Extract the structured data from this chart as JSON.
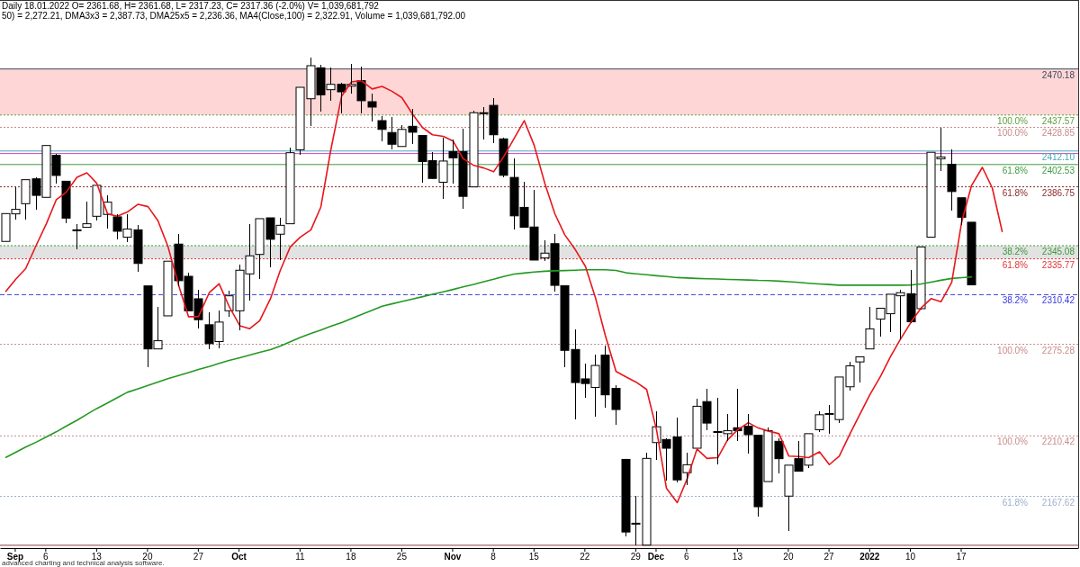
{
  "chart_data": {
    "type": "candlestick",
    "title": "Daily 18.01.2022 O= 2361.68, H= 2361.68, L= 2317.23, C= 2317.36 (-2.0%) V= 1,039,681,792",
    "subtitle": "50) = 2,272.21, DMA3x3 = 2,387.73, DMA25x5 = 2,236.36, MA4(Close,100) = 2,322.91, Volume = 1,039,681,792.00",
    "categories": [
      null,
      "Sep",
      null,
      null,
      "6",
      null,
      null,
      null,
      null,
      "13",
      null,
      null,
      null,
      null,
      "20",
      null,
      null,
      null,
      null,
      "27",
      null,
      null,
      null,
      "Oct",
      null,
      null,
      null,
      null,
      null,
      "11",
      null,
      null,
      null,
      null,
      "18",
      null,
      null,
      null,
      null,
      "25",
      null,
      null,
      null,
      null,
      "Nov",
      null,
      null,
      null,
      "8",
      null,
      null,
      null,
      "15",
      null,
      null,
      null,
      null,
      "22",
      null,
      null,
      null,
      null,
      "29",
      null,
      "Dec",
      null,
      null,
      "6",
      null,
      null,
      null,
      null,
      "13",
      null,
      null,
      null,
      null,
      "20",
      null,
      null,
      null,
      "27",
      null,
      null,
      null,
      "2022",
      null,
      null,
      null,
      "10",
      null,
      null,
      null,
      null,
      "17",
      null,
      null,
      null,
      null,
      null,
      null,
      null,
      null,
      null,
      null,
      null
    ],
    "ohlc": [
      [
        2348.1,
        2367.8,
        2348.1,
        2367.8
      ],
      [
        2367.6,
        2386.7,
        2363.4,
        2370.8
      ],
      [
        2374.8,
        2391.8,
        2363.4,
        2391.8
      ],
      [
        2392.4,
        2393.5,
        2370.6,
        2380.7
      ],
      [
        2379.3,
        2416.0,
        2379.3,
        2416.0
      ],
      [
        2409.0,
        2410.0,
        2388.8,
        2394.8
      ],
      [
        2390.7,
        2390.7,
        2361.2,
        2364.6
      ],
      [
        2356.3,
        2360.6,
        2342.4,
        2356.3
      ],
      [
        2358.1,
        2376.5,
        2358.1,
        2360.6
      ],
      [
        2365.9,
        2387.8,
        2363.1,
        2387.8
      ],
      [
        2367.2,
        2380.8,
        2356.9,
        2375.9
      ],
      [
        2365.5,
        2367.2,
        2349.4,
        2355.3
      ],
      [
        2351.1,
        2367.2,
        2347.5,
        2356.9
      ],
      [
        2356.3,
        2359.5,
        2326.6,
        2332.5
      ],
      [
        2316.6,
        2316.6,
        2259.3,
        2272.0
      ],
      [
        2272.0,
        2301.7,
        2272.0,
        2277.8
      ],
      [
        2295.4,
        2334.1,
        2295.4,
        2334.1
      ],
      [
        2346.2,
        2353.2,
        2316.2,
        2320.3
      ],
      [
        2323.4,
        2326.0,
        2299.0,
        2299.0
      ],
      [
        2307.5,
        2313.9,
        2286.3,
        2292.7
      ],
      [
        2289.1,
        2298.0,
        2271.5,
        2275.7
      ],
      [
        2277.2,
        2299.0,
        2272.5,
        2291.0
      ],
      [
        2299.0,
        2313.2,
        2294.8,
        2309.6
      ],
      [
        2299.0,
        2331.9,
        2285.2,
        2327.7
      ],
      [
        2325.1,
        2360.6,
        2306.5,
        2337.9
      ],
      [
        2338.9,
        2364.2,
        2321.5,
        2364.2
      ],
      [
        2364.8,
        2364.8,
        2329.5,
        2349.6
      ],
      [
        2353.2,
        2364.8,
        2335.1,
        2359.5
      ],
      [
        2360.6,
        2414.7,
        2360.6,
        2410.9
      ],
      [
        2413.0,
        2457.2,
        2409.4,
        2457.2
      ],
      [
        2449.1,
        2478.4,
        2430.0,
        2472.5
      ],
      [
        2471.0,
        2473.1,
        2440.2,
        2451.9
      ],
      [
        2455.5,
        2471.0,
        2447.7,
        2459.3
      ],
      [
        2459.3,
        2460.4,
        2438.5,
        2454.0
      ],
      [
        2458.0,
        2473.7,
        2453.0,
        2459.3
      ],
      [
        2461.9,
        2472.1,
        2438.5,
        2447.7
      ],
      [
        2447.0,
        2453.0,
        2432.8,
        2443.2
      ],
      [
        2433.6,
        2437.0,
        2419.1,
        2427.4
      ],
      [
        2425.2,
        2436.3,
        2413.1,
        2416.9
      ],
      [
        2415.3,
        2430.3,
        2415.3,
        2427.4
      ],
      [
        2429.6,
        2442.1,
        2417.3,
        2425.4
      ],
      [
        2423.1,
        2423.6,
        2389.4,
        2404.6
      ],
      [
        2405.3,
        2411.3,
        2392.3,
        2392.7
      ],
      [
        2390.0,
        2421.3,
        2378.4,
        2405.0
      ],
      [
        2411.7,
        2420.2,
        2389.0,
        2407.3
      ],
      [
        2411.7,
        2428.1,
        2371.5,
        2380.0
      ],
      [
        2386.7,
        2440.8,
        2386.7,
        2439.2
      ],
      [
        2439.2,
        2443.0,
        2420.2,
        2439.2
      ],
      [
        2444.4,
        2449.3,
        2417.5,
        2423.6
      ],
      [
        2420.7,
        2421.3,
        2393.4,
        2394.9
      ],
      [
        2393.4,
        2406.8,
        2356.5,
        2366.2
      ],
      [
        2372.2,
        2390.0,
        2358.1,
        2358.1
      ],
      [
        2358.3,
        2384.5,
        2334.9,
        2334.9
      ],
      [
        2336.4,
        2349.2,
        2334.2,
        2339.8
      ],
      [
        2346.5,
        2353.6,
        2312.5,
        2317.0
      ],
      [
        2316.8,
        2316.8,
        2259.3,
        2271.0
      ],
      [
        2271.6,
        2285.7,
        2221.8,
        2248.2
      ],
      [
        2250.8,
        2261.9,
        2237.4,
        2247.5
      ],
      [
        2244.7,
        2268.1,
        2224.0,
        2260.3
      ],
      [
        2267.6,
        2274.4,
        2230.3,
        2239.5
      ],
      [
        2244.1,
        2246.3,
        2218.6,
        2229.1
      ],
      [
        2193.8,
        2193.8,
        2139.1,
        2142.4
      ],
      [
        2148.6,
        2168.2,
        2133.1,
        2148.6
      ],
      [
        2133.1,
        2198.5,
        2133.1,
        2194.5
      ],
      [
        2205.7,
        2228.0,
        2193.4,
        2216.9
      ],
      [
        2207.9,
        2208.5,
        2178.9,
        2201.7
      ],
      [
        2209.7,
        2223.1,
        2177.7,
        2179.3
      ],
      [
        2184.4,
        2198.5,
        2175.5,
        2190.0
      ],
      [
        2201.7,
        2237.0,
        2201.7,
        2231.4
      ],
      [
        2234.7,
        2243.7,
        2214.6,
        2219.5
      ],
      [
        2213.5,
        2237.5,
        2190.0,
        2213.5
      ],
      [
        2212.0,
        2225.8,
        2206.6,
        2214.1
      ],
      [
        2216.2,
        2243.7,
        2206.6,
        2214.1
      ],
      [
        2217.3,
        2225.8,
        2198.1,
        2211.3
      ],
      [
        2210.9,
        2210.9,
        2153.5,
        2160.3
      ],
      [
        2178.1,
        2216.2,
        2178.1,
        2214.1
      ],
      [
        2206.6,
        2208.7,
        2183.7,
        2194.3
      ],
      [
        2167.8,
        2189.7,
        2143.4,
        2189.7
      ],
      [
        2194.3,
        2206.6,
        2185.4,
        2185.4
      ],
      [
        2189.7,
        2212.0,
        2187.6,
        2212.0
      ],
      [
        2214.8,
        2227.9,
        2213.5,
        2225.4
      ],
      [
        2226.3,
        2232.2,
        2212.0,
        2226.3
      ],
      [
        2222.0,
        2252.1,
        2219.3,
        2252.1
      ],
      [
        2245.2,
        2262.8,
        2242.7,
        2260.0
      ],
      [
        2262.8,
        2266.4,
        2248.1,
        2266.4
      ],
      [
        2272.0,
        2301.7,
        2272.0,
        2286.2
      ],
      [
        2293.1,
        2300.8,
        2281.0,
        2300.8
      ],
      [
        2296.9,
        2310.7,
        2283.6,
        2310.7
      ],
      [
        2309.6,
        2313.7,
        2278.9,
        2311.8
      ],
      [
        2311.1,
        2327.7,
        2290.5,
        2291.2
      ],
      [
        2300.5,
        2344.2,
        2300.1,
        2344.2
      ],
      [
        2351.1,
        2411.2,
        2351.1,
        2411.2
      ],
      [
        2406.6,
        2428.6,
        2397.8,
        2407.9
      ],
      [
        2402.7,
        2413.0,
        2370.0,
        2383.4
      ],
      [
        2379.0,
        2379.0,
        2359.9,
        2365.2
      ],
      [
        2361.68,
        2361.68,
        2317.23,
        2317.36
      ],
      null,
      null,
      null,
      null,
      null,
      null,
      null,
      null,
      null,
      null
    ],
    "series": [
      {
        "type": "line",
        "color": "#229922",
        "values": [
          2195.2,
          2198.9,
          2202.5,
          2206.1,
          2209.7,
          2213.3,
          2217.3,
          2221.5,
          2225.7,
          2229.8,
          2233.7,
          2237.6,
          2241.3,
          2243.8,
          2246.2,
          2248.6,
          2251.0,
          2253.2,
          2255.3,
          2257.5,
          2259.6,
          2261.8,
          2263.8,
          2265.7,
          2267.6,
          2269.6,
          2271.5,
          2274.0,
          2277.1,
          2280.1,
          2282.9,
          2285.4,
          2288.0,
          2290.6,
          2293.5,
          2296.4,
          2299.3,
          2302.2,
          2303.9,
          2305.6,
          2307.3,
          2309.0,
          2310.7,
          2312.4,
          2314.1,
          2315.9,
          2317.7,
          2319.6,
          2321.3,
          2323.2,
          2325.0,
          2325.7,
          2326.4,
          2327.0,
          2327.3,
          2327.5,
          2327.7,
          2328.0,
          2328.0,
          2328.0,
          2327.5,
          2325.9,
          2325.2,
          2324.5,
          2323.8,
          2323.2,
          2322.5,
          2322.2,
          2321.9,
          2321.7,
          2321.5,
          2321.2,
          2321.0,
          2320.8,
          2320.5,
          2320.4,
          2320.0,
          2319.6,
          2319.1,
          2318.5,
          2318.0,
          2317.6,
          2317.1,
          2317.1,
          2317.1,
          2317.1,
          2317.1,
          2317.1,
          2317.1,
          2317.3,
          2318.0,
          2319.3,
          2320.6,
          2321.9,
          2322.5,
          2322.91,
          null,
          null,
          null,
          null,
          null,
          null,
          null,
          null,
          null,
          null
        ]
      },
      {
        "type": "line",
        "color": "#e8161b",
        "values": [
          2312.8,
          2321.3,
          2328.8,
          2345.7,
          2360.6,
          2377.6,
          2382.9,
          2393.5,
          2396.7,
          2389.3,
          2367.6,
          2365.9,
          2368.9,
          2374.4,
          2372.7,
          2362.7,
          2344.7,
          2317.1,
          2294.8,
          2294.8,
          2311.8,
          2318.1,
          2302.2,
          2288.4,
          2286.3,
          2292.0,
          2307.5,
          2327.7,
          2344.2,
          2351.0,
          2356.3,
          2372.5,
          2412.6,
          2450.8,
          2461.0,
          2461.9,
          2456.0,
          2457.8,
          2454.4,
          2449.9,
          2438.1,
          2428.7,
          2423.6,
          2422.5,
          2419.1,
          2406.8,
          2401.9,
          2400.1,
          2397.4,
          2407.9,
          2421.3,
          2433.6,
          2416.2,
          2388.9,
          2367.7,
          2352.8,
          2342.0,
          2330.4,
          2308.5,
          2281.7,
          2256.0,
          2252.2,
          2248.6,
          2243.3,
          2214.7,
          2173.3,
          2163.2,
          2180.0,
          2201.2,
          2194.5,
          2195.0,
          2207.7,
          2214.7,
          2219.8,
          2216.0,
          2213.9,
          2212.0,
          2196.1,
          2195.8,
          2195.0,
          2199.2,
          2190.1,
          2196.1,
          2212.0,
          2225.8,
          2239.6,
          2252.8,
          2266.6,
          2278.9,
          2291.2,
          2301.0,
          2307.6,
          2305.4,
          2319.2,
          2361.7,
          2387.73,
          2400.5,
          2386.0,
          2355.2,
          null,
          null,
          null,
          null,
          null,
          null,
          null
        ]
      }
    ],
    "ylim": [
      2131,
      2519
    ],
    "tick_labels": "x",
    "bands": [
      {
        "axis": "y",
        "from": 2437.57,
        "to": 2470.18,
        "color": "#ffd6d6"
      },
      {
        "axis": "y",
        "from": 2335.77,
        "to": 2345.08,
        "color": "#e2e2e2"
      }
    ],
    "ref_lines": [
      {
        "axis": "y",
        "value": 2470.18,
        "label": "2470.18",
        "color": "#3c4a5e",
        "line_style": "solid"
      },
      {
        "axis": "y",
        "value": 2437.57,
        "label": "2437.57",
        "color": "#5e9e3c",
        "line_style": "dotted"
      },
      {
        "axis": "y",
        "value": 2428.85,
        "label": "2428.85",
        "color": "#c98b8b",
        "line_style": "dotted"
      },
      {
        "axis": "y",
        "value": 2412.1,
        "label": "2412.10",
        "color": "#4aa8b4",
        "line_style": "solid"
      },
      {
        "axis": "y",
        "value": 2410.3,
        "color": "#cc44cc",
        "line_style": "solid"
      },
      {
        "axis": "y",
        "value": 2402.53,
        "label": "2402.53",
        "color": "#3f9a3f",
        "line_style": "solid"
      },
      {
        "axis": "y",
        "value": 2386.75,
        "label": "2386.75",
        "color": "#8b2a2a",
        "line_style": "dotted"
      },
      {
        "axis": "y",
        "value": 2345.08,
        "label": "2345.08",
        "color": "#3c9a3c",
        "line_style": "dotted"
      },
      {
        "axis": "y",
        "value": 2335.77,
        "label": "2335.77",
        "color": "#e03434",
        "line_style": "dotted"
      },
      {
        "axis": "y",
        "value": 2310.42,
        "label": "2310.42",
        "color": "#3a3ae0",
        "line_style": "dashed"
      },
      {
        "axis": "y",
        "value": 2275.28,
        "label": "2275.28",
        "color": "#c98b8b",
        "line_style": "dotted"
      },
      {
        "axis": "y",
        "value": 2210.42,
        "label": "2210.42",
        "color": "#c98b8b",
        "line_style": "dotted"
      },
      {
        "axis": "y",
        "value": 2167.62,
        "label": "2167.62",
        "color": "#9db0cc",
        "line_style": "dotted"
      },
      {
        "axis": "y",
        "value": 2133,
        "color": "#8b3a3a",
        "line_style": "solid"
      }
    ],
    "annotations": [
      {
        "text": "100.0%",
        "y": 2437.57
      },
      {
        "text": "100.0%",
        "y": 2428.85
      },
      {
        "text": "61.8%",
        "y": 2402.53
      },
      {
        "text": "61.8%",
        "y": 2386.75
      },
      {
        "text": "38.2%",
        "y": 2345.08
      },
      {
        "text": "61.8%",
        "y": 2335.77
      },
      {
        "text": "38.2%",
        "y": 2310.42
      },
      {
        "text": "100.0%",
        "y": 2275.28
      },
      {
        "text": "100.0%",
        "y": 2210.42
      },
      {
        "text": "61.8%",
        "y": 2167.62
      },
      "advanced charting and technical analysis software."
    ]
  }
}
